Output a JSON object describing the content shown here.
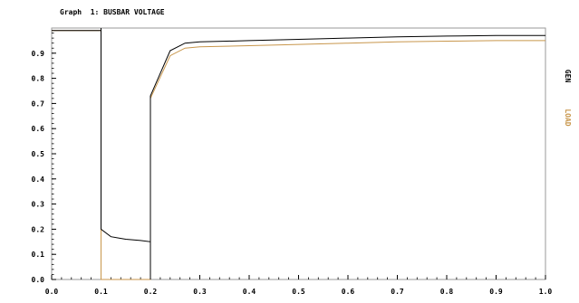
{
  "chart_data": {
    "type": "line",
    "title": "Graph  1: BUSBAR VOLTAGE",
    "xlabel": "",
    "ylabel": "",
    "xlim": [
      0.0,
      1.0
    ],
    "ylim": [
      0.0,
      1.0
    ],
    "x_ticks": [
      "0.0",
      "0.1",
      "0.2",
      "0.3",
      "0.4",
      "0.5",
      "0.6",
      "0.7",
      "0.8",
      "0.9",
      "1.0"
    ],
    "y_ticks": [
      "0.0",
      "0.1",
      "0.2",
      "0.3",
      "0.4",
      "0.5",
      "0.6",
      "0.7",
      "0.8",
      "0.9"
    ],
    "legend_placement": "right",
    "series": [
      {
        "name": "GEN",
        "color": "#000000",
        "x": [
          0.0,
          0.1,
          0.1,
          0.1,
          0.12,
          0.15,
          0.18,
          0.2,
          0.2,
          0.2,
          0.24,
          0.27,
          0.3,
          0.4,
          0.5,
          0.6,
          0.7,
          0.8,
          0.9,
          1.0
        ],
        "y": [
          0.99,
          0.99,
          1.0,
          0.2,
          0.17,
          0.16,
          0.155,
          0.15,
          0.0,
          0.73,
          0.91,
          0.94,
          0.945,
          0.95,
          0.955,
          0.96,
          0.965,
          0.968,
          0.97,
          0.97
        ]
      },
      {
        "name": "LOAD",
        "color": "#c8964b",
        "x": [
          0.0,
          0.1,
          0.1,
          0.2,
          0.2,
          0.24,
          0.27,
          0.3,
          0.4,
          0.5,
          0.6,
          0.7,
          0.8,
          0.9,
          1.0
        ],
        "y": [
          0.99,
          0.99,
          0.0,
          0.0,
          0.72,
          0.89,
          0.92,
          0.925,
          0.93,
          0.935,
          0.94,
          0.945,
          0.948,
          0.95,
          0.95
        ]
      }
    ]
  }
}
